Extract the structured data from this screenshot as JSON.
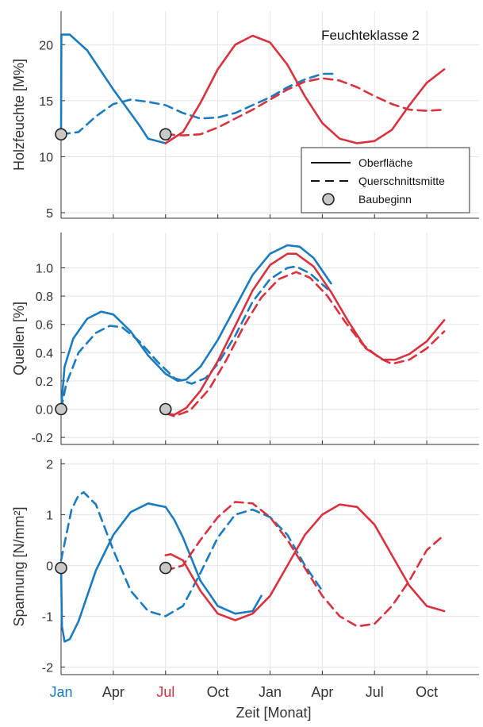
{
  "colors": {
    "blue": "#1a7bbf",
    "red": "#d8323f",
    "marker_fill": "#c8c8c8",
    "axis": "#333333",
    "grid": "#e3e3e3"
  },
  "x_axis": {
    "xlabel": "Zeit [Monat]",
    "ticks": [
      {
        "label": "Jan",
        "value": 0,
        "color": "blue"
      },
      {
        "label": "Apr",
        "value": 3
      },
      {
        "label": "Jul",
        "value": 6,
        "color": "red"
      },
      {
        "label": "Oct",
        "value": 9
      },
      {
        "label": "Jan",
        "value": 12
      },
      {
        "label": "Apr",
        "value": 15
      },
      {
        "label": "Jul",
        "value": 18
      },
      {
        "label": "Oct",
        "value": 21
      }
    ],
    "range": [
      0,
      24
    ]
  },
  "chart_data": [
    {
      "type": "line",
      "ylabel": "Holzfeuchte [M%]",
      "annotation": "Feuchteklasse 2",
      "ylim": [
        4.5,
        23
      ],
      "yticks": [
        {
          "v": 5,
          "label": "5"
        },
        {
          "v": 10,
          "label": "10"
        },
        {
          "v": 15,
          "label": "15"
        },
        {
          "v": 20,
          "label": "20"
        }
      ],
      "grid": true,
      "legend": {
        "placement": "bottom-right",
        "entries": [
          {
            "label": "Oberfläche",
            "style": "solid"
          },
          {
            "label": "Querschnittsmitte",
            "style": "dashed"
          },
          {
            "label": "Baubeginn",
            "style": "marker"
          }
        ]
      },
      "series": [
        {
          "color": "blue",
          "style": "solid",
          "points": [
            [
              0,
              12
            ],
            [
              0.02,
              20.9
            ],
            [
              0.5,
              20.9
            ],
            [
              1.5,
              19.5
            ],
            [
              3,
              16
            ],
            [
              4.5,
              12.8
            ],
            [
              5,
              11.6
            ],
            [
              6,
              11.2
            ]
          ]
        },
        {
          "color": "blue",
          "style": "dashed",
          "points": [
            [
              0,
              12
            ],
            [
              1,
              12.2
            ],
            [
              2,
              13.6
            ],
            [
              3,
              14.7
            ],
            [
              4,
              15.1
            ],
            [
              5,
              14.9
            ],
            [
              6,
              14.6
            ],
            [
              7,
              13.9
            ],
            [
              8,
              13.4
            ],
            [
              9,
              13.5
            ],
            [
              10,
              13.9
            ],
            [
              11,
              14.6
            ],
            [
              12,
              15.3
            ],
            [
              13,
              16.2
            ],
            [
              14,
              16.9
            ],
            [
              15,
              17.4
            ],
            [
              15.6,
              17.4
            ]
          ]
        },
        {
          "color": "red",
          "style": "solid",
          "points": [
            [
              6,
              11.2
            ],
            [
              7,
              12.2
            ],
            [
              8,
              14.8
            ],
            [
              9,
              17.8
            ],
            [
              10,
              20.0
            ],
            [
              11,
              20.8
            ],
            [
              12,
              20.2
            ],
            [
              13,
              18.2
            ],
            [
              14,
              15.4
            ],
            [
              15,
              13.0
            ],
            [
              16,
              11.6
            ],
            [
              17,
              11.2
            ],
            [
              18,
              11.4
            ],
            [
              19,
              12.4
            ],
            [
              20,
              14.6
            ],
            [
              21,
              16.6
            ],
            [
              22,
              17.8
            ]
          ]
        },
        {
          "color": "red",
          "style": "dashed",
          "points": [
            [
              6,
              12
            ],
            [
              7,
              11.9
            ],
            [
              8,
              12.0
            ],
            [
              9,
              12.6
            ],
            [
              10,
              13.4
            ],
            [
              11,
              14.2
            ],
            [
              12,
              15.1
            ],
            [
              13,
              16.0
            ],
            [
              14,
              16.7
            ],
            [
              15,
              17.0
            ],
            [
              16,
              16.8
            ],
            [
              17,
              16.2
            ],
            [
              18,
              15.4
            ],
            [
              19,
              14.7
            ],
            [
              20,
              14.2
            ],
            [
              21,
              14.1
            ],
            [
              22,
              14.2
            ]
          ]
        }
      ],
      "markers": [
        [
          0,
          12
        ],
        [
          6,
          12
        ]
      ]
    },
    {
      "type": "line",
      "ylabel": "Quellen [%]",
      "ylim": [
        -0.25,
        1.25
      ],
      "yticks": [
        {
          "v": -0.2,
          "label": "-0.2"
        },
        {
          "v": 0,
          "label": "0.0"
        },
        {
          "v": 0.2,
          "label": "0.2"
        },
        {
          "v": 0.4,
          "label": "0.4"
        },
        {
          "v": 0.6,
          "label": "0.6"
        },
        {
          "v": 0.8,
          "label": "0.8"
        },
        {
          "v": 1.0,
          "label": "1.0"
        }
      ],
      "grid": true,
      "series": [
        {
          "color": "blue",
          "style": "solid",
          "points": [
            [
              0,
              0
            ],
            [
              0.2,
              0.3
            ],
            [
              0.7,
              0.5
            ],
            [
              1.5,
              0.64
            ],
            [
              2.3,
              0.69
            ],
            [
              3,
              0.67
            ],
            [
              4,
              0.55
            ],
            [
              5,
              0.38
            ],
            [
              6,
              0.25
            ],
            [
              6.7,
              0.2
            ],
            [
              7.2,
              0.21
            ],
            [
              8,
              0.3
            ],
            [
              9,
              0.49
            ],
            [
              10,
              0.72
            ],
            [
              11,
              0.95
            ],
            [
              12,
              1.1
            ],
            [
              13,
              1.16
            ],
            [
              13.7,
              1.15
            ],
            [
              14.5,
              1.07
            ],
            [
              15.5,
              0.89
            ]
          ]
        },
        {
          "color": "blue",
          "style": "dashed",
          "points": [
            [
              0,
              0
            ],
            [
              0.3,
              0.18
            ],
            [
              1,
              0.4
            ],
            [
              2,
              0.54
            ],
            [
              2.8,
              0.59
            ],
            [
              3.5,
              0.58
            ],
            [
              4.5,
              0.48
            ],
            [
              5.5,
              0.34
            ],
            [
              6.5,
              0.22
            ],
            [
              7.5,
              0.18
            ],
            [
              8.3,
              0.22
            ],
            [
              9,
              0.32
            ],
            [
              10,
              0.52
            ],
            [
              11,
              0.76
            ],
            [
              12,
              0.92
            ],
            [
              13,
              1.0
            ],
            [
              13.5,
              1.01
            ],
            [
              14.3,
              0.96
            ],
            [
              15.3,
              0.85
            ]
          ]
        },
        {
          "color": "red",
          "style": "solid",
          "points": [
            [
              6,
              -0.03
            ],
            [
              6.5,
              -0.04
            ],
            [
              7.2,
              0.01
            ],
            [
              8,
              0.13
            ],
            [
              9,
              0.34
            ],
            [
              10,
              0.59
            ],
            [
              11,
              0.84
            ],
            [
              12,
              1.02
            ],
            [
              13,
              1.1
            ],
            [
              13.5,
              1.1
            ],
            [
              14.5,
              1.01
            ],
            [
              15.5,
              0.83
            ],
            [
              16.5,
              0.62
            ],
            [
              17.5,
              0.43
            ],
            [
              18.5,
              0.35
            ],
            [
              19.2,
              0.35
            ],
            [
              20,
              0.39
            ],
            [
              21,
              0.48
            ],
            [
              22,
              0.63
            ]
          ]
        },
        {
          "color": "red",
          "style": "dashed",
          "points": [
            [
              6,
              -0.03
            ],
            [
              6.5,
              -0.05
            ],
            [
              7.4,
              -0.01
            ],
            [
              8.5,
              0.14
            ],
            [
              9.5,
              0.35
            ],
            [
              10.5,
              0.59
            ],
            [
              11.5,
              0.79
            ],
            [
              12.5,
              0.92
            ],
            [
              13.5,
              0.97
            ],
            [
              14.3,
              0.93
            ],
            [
              15.3,
              0.8
            ],
            [
              16.3,
              0.62
            ],
            [
              17.3,
              0.46
            ],
            [
              18.3,
              0.36
            ],
            [
              19,
              0.32
            ],
            [
              20,
              0.35
            ],
            [
              21,
              0.43
            ],
            [
              22,
              0.55
            ]
          ]
        }
      ],
      "markers": [
        [
          0,
          0
        ],
        [
          6,
          0
        ]
      ]
    },
    {
      "type": "line",
      "ylabel": "Spannung [N/mm²]",
      "ylim": [
        -2.15,
        2.1
      ],
      "yticks": [
        {
          "v": -2,
          "label": "-2"
        },
        {
          "v": -1,
          "label": "-1"
        },
        {
          "v": 0,
          "label": "0"
        },
        {
          "v": 1,
          "label": "1"
        },
        {
          "v": 2,
          "label": "2"
        }
      ],
      "grid": true,
      "series": [
        {
          "color": "blue",
          "style": "solid",
          "points": [
            [
              0,
              0
            ],
            [
              0.05,
              -1.2
            ],
            [
              0.2,
              -1.5
            ],
            [
              0.5,
              -1.45
            ],
            [
              1,
              -1.1
            ],
            [
              2,
              -0.1
            ],
            [
              3,
              0.6
            ],
            [
              4,
              1.05
            ],
            [
              5,
              1.22
            ],
            [
              6,
              1.15
            ],
            [
              6.5,
              0.9
            ],
            [
              7,
              0.55
            ],
            [
              8,
              -0.3
            ],
            [
              9,
              -0.8
            ],
            [
              10,
              -0.95
            ],
            [
              11,
              -0.9
            ],
            [
              11.5,
              -0.6
            ]
          ]
        },
        {
          "color": "blue",
          "style": "dashed",
          "points": [
            [
              0,
              0.1
            ],
            [
              0.3,
              0.6
            ],
            [
              0.6,
              1.1
            ],
            [
              1,
              1.38
            ],
            [
              1.3,
              1.44
            ],
            [
              2,
              1.2
            ],
            [
              3,
              0.3
            ],
            [
              4,
              -0.5
            ],
            [
              5,
              -0.9
            ],
            [
              6,
              -1.0
            ],
            [
              7,
              -0.8
            ],
            [
              8,
              -0.15
            ],
            [
              9,
              0.55
            ],
            [
              10,
              1.0
            ],
            [
              11,
              1.1
            ],
            [
              12,
              0.95
            ],
            [
              13,
              0.6
            ],
            [
              14,
              0.0
            ],
            [
              15,
              -0.5
            ]
          ]
        },
        {
          "color": "red",
          "style": "solid",
          "points": [
            [
              6,
              0.2
            ],
            [
              6.3,
              0.22
            ],
            [
              7,
              0.1
            ],
            [
              8,
              -0.5
            ],
            [
              9,
              -0.95
            ],
            [
              10,
              -1.08
            ],
            [
              11,
              -0.95
            ],
            [
              12,
              -0.6
            ],
            [
              13,
              0.0
            ],
            [
              14,
              0.6
            ],
            [
              15,
              1.0
            ],
            [
              16,
              1.2
            ],
            [
              17,
              1.15
            ],
            [
              18,
              0.8
            ],
            [
              19,
              0.2
            ],
            [
              20,
              -0.4
            ],
            [
              21,
              -0.8
            ],
            [
              22,
              -0.9
            ]
          ]
        },
        {
          "color": "red",
          "style": "dashed",
          "points": [
            [
              6,
              -0.1
            ],
            [
              7,
              0.0
            ],
            [
              8,
              0.5
            ],
            [
              9,
              0.95
            ],
            [
              10,
              1.25
            ],
            [
              11,
              1.22
            ],
            [
              12,
              0.95
            ],
            [
              13,
              0.5
            ],
            [
              14,
              -0.05
            ],
            [
              15,
              -0.6
            ],
            [
              16,
              -1.0
            ],
            [
              17,
              -1.2
            ],
            [
              18,
              -1.15
            ],
            [
              19,
              -0.8
            ],
            [
              20,
              -0.3
            ],
            [
              21,
              0.3
            ],
            [
              22,
              0.6
            ]
          ]
        }
      ],
      "markers": [
        [
          0,
          -0.05
        ],
        [
          6,
          -0.05
        ]
      ]
    }
  ]
}
